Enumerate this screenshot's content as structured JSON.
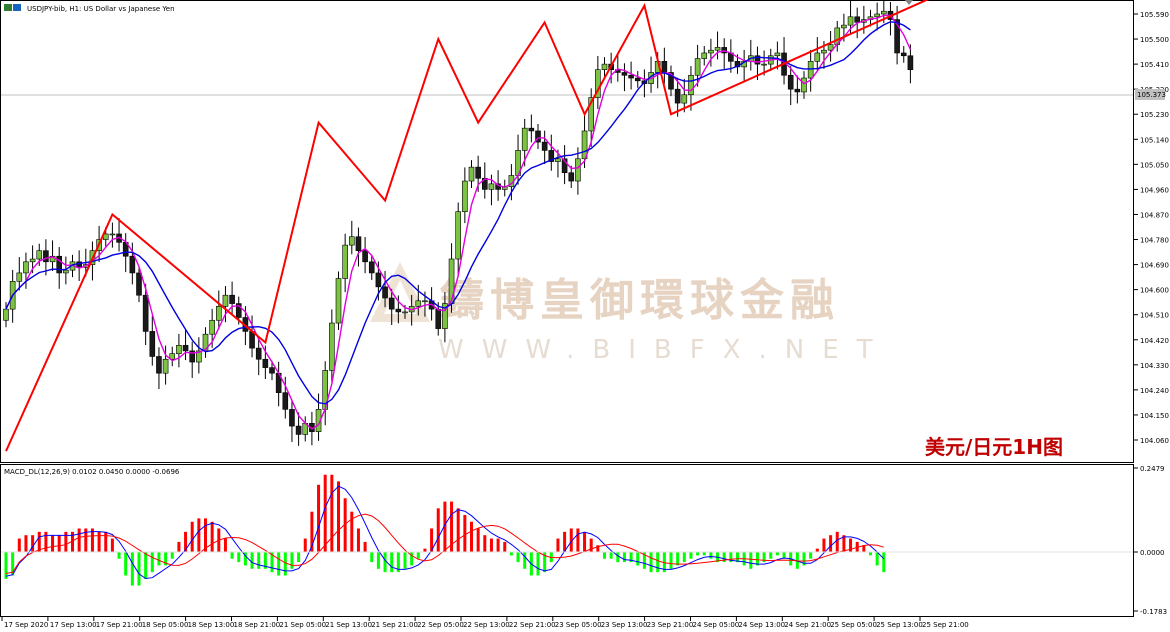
{
  "chart_data": [
    {
      "type": "candlestick",
      "title": "USDJPY-bib, H1:  US Dollar vs Japanese Yen",
      "caption": "美元/日元1H图",
      "watermark_cn": "鑄博皇御環球金融",
      "watermark_en": "WWW.BIBFX.NET",
      "price_label": "105.373",
      "ylim": [
        104.0,
        105.64
      ],
      "y_ticks": [
        104.06,
        104.15,
        104.24,
        104.33,
        104.42,
        104.51,
        104.6,
        104.69,
        104.78,
        104.87,
        104.96,
        105.05,
        105.14,
        105.23,
        105.32,
        105.41,
        105.5,
        105.59
      ],
      "x_ticks": [
        "17 Sep 2020",
        "17 Sep 13:00",
        "17 Sep 21:00",
        "18 Sep 05:00",
        "18 Sep 13:00",
        "18 Sep 21:00",
        "21 Sep 05:00",
        "21 Sep 13:00",
        "21 Sep 21:00",
        "22 Sep 05:00",
        "22 Sep 13:00",
        "22 Sep 21:00",
        "23 Sep 05:00",
        "23 Sep 13:00",
        "23 Sep 21:00",
        "24 Sep 05:00",
        "24 Sep 13:00",
        "24 Sep 21:00",
        "25 Sep 05:00",
        "25 Sep 13:00",
        "25 Sep 21:00"
      ],
      "closes": [
        104.53,
        104.63,
        104.66,
        104.7,
        104.71,
        104.74,
        104.7,
        104.72,
        104.66,
        104.67,
        104.7,
        104.68,
        104.69,
        104.74,
        104.78,
        104.8,
        104.8,
        104.77,
        104.72,
        104.66,
        104.58,
        104.45,
        104.36,
        104.3,
        104.35,
        104.37,
        104.4,
        104.38,
        104.34,
        104.38,
        104.44,
        104.49,
        104.54,
        104.58,
        104.55,
        104.5,
        104.45,
        104.39,
        104.35,
        104.32,
        104.3,
        104.23,
        104.17,
        104.11,
        104.08,
        104.12,
        104.09,
        104.17,
        104.31,
        104.48,
        104.64,
        104.76,
        104.79,
        104.74,
        104.7,
        104.66,
        104.61,
        104.57,
        104.53,
        104.52,
        104.52,
        104.54,
        104.56,
        104.56,
        104.53,
        104.46,
        104.55,
        104.71,
        104.88,
        104.99,
        105.04,
        105.0,
        104.96,
        104.98,
        104.96,
        104.97,
        105.01,
        105.1,
        105.18,
        105.17,
        105.13,
        105.1,
        105.06,
        105.07,
        105.02,
        104.99,
        105.07,
        105.17,
        105.29,
        105.39,
        105.41,
        105.39,
        105.38,
        105.37,
        105.36,
        105.35,
        105.34,
        105.38,
        105.42,
        105.38,
        105.32,
        105.27,
        105.3,
        105.37,
        105.43,
        105.45,
        105.46,
        105.47,
        105.45,
        105.42,
        105.4,
        105.42,
        105.44,
        105.41,
        105.41,
        105.44,
        105.45,
        105.37,
        105.32,
        105.31,
        105.36,
        105.42,
        105.45,
        105.46,
        105.48,
        105.54,
        105.55,
        105.58,
        105.56,
        105.57,
        105.58,
        105.59,
        105.6,
        105.57,
        105.45,
        105.44,
        105.39
      ],
      "zigzag": [
        [
          0,
          104.02
        ],
        [
          16,
          104.87
        ],
        [
          39,
          104.41
        ],
        [
          47,
          105.2
        ],
        [
          57,
          104.92
        ],
        [
          65,
          105.5
        ],
        [
          71,
          105.2
        ],
        [
          81,
          105.56
        ],
        [
          87,
          105.23
        ],
        [
          96,
          105.62
        ],
        [
          100,
          105.23
        ],
        [
          159,
          105.86
        ]
      ],
      "ma_fast_color": "#e000e0",
      "ma_slow_color": "#0000e0",
      "zigzag_color": "#ff0000"
    },
    {
      "type": "macd",
      "title": "MACD_DL(12,26,9) 0.0102 0.0450 0.0000 -0.0696",
      "ylim": [
        -0.1783,
        0.2479
      ],
      "y_ticks": [
        0.2479,
        0.0,
        -0.1783
      ],
      "y_tick_labels": [
        "0.2479",
        "0.0000",
        "-0.1783"
      ],
      "hist": [
        -0.08,
        -0.07,
        0.04,
        0.05,
        0.05,
        0.06,
        0.06,
        0.05,
        0.05,
        0.06,
        0.06,
        0.07,
        0.07,
        0.07,
        0.06,
        0.06,
        0.04,
        -0.02,
        -0.07,
        -0.1,
        -0.1,
        -0.08,
        -0.06,
        -0.04,
        -0.04,
        -0.02,
        0.03,
        0.06,
        0.09,
        0.1,
        0.1,
        0.09,
        0.07,
        0.04,
        -0.02,
        -0.03,
        -0.04,
        -0.05,
        -0.05,
        -0.05,
        -0.06,
        -0.07,
        -0.07,
        -0.05,
        -0.03,
        0.04,
        0.12,
        0.2,
        0.23,
        0.23,
        0.21,
        0.16,
        0.12,
        0.07,
        0.03,
        -0.03,
        -0.05,
        -0.06,
        -0.06,
        -0.06,
        -0.05,
        -0.04,
        -0.02,
        0.01,
        0.07,
        0.13,
        0.15,
        0.15,
        0.13,
        0.11,
        0.09,
        0.07,
        0.05,
        0.04,
        0.04,
        0.03,
        -0.01,
        -0.03,
        -0.05,
        -0.07,
        -0.07,
        -0.06,
        -0.03,
        0.04,
        0.06,
        0.07,
        0.07,
        0.06,
        0.04,
        0.02,
        -0.02,
        -0.02,
        -0.03,
        -0.03,
        -0.03,
        -0.04,
        -0.05,
        -0.06,
        -0.06,
        -0.06,
        -0.05,
        -0.04,
        -0.03,
        -0.02,
        -0.01,
        -0.01,
        -0.02,
        -0.03,
        -0.03,
        -0.03,
        -0.03,
        -0.04,
        -0.05,
        -0.04,
        -0.03,
        -0.02,
        -0.01,
        -0.02,
        -0.04,
        -0.05,
        -0.04,
        -0.02,
        0.01,
        0.04,
        0.05,
        0.06,
        0.05,
        0.04,
        0.03,
        0.02,
        -0.01,
        -0.04,
        -0.06
      ],
      "macd_color": "#0000ff",
      "signal_color": "#ff0000",
      "pos_color": "#ff0000",
      "neg_color": "#00ff00"
    }
  ]
}
